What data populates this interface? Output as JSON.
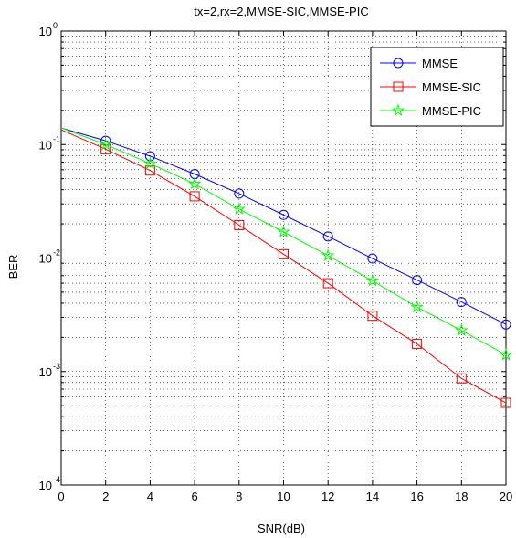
{
  "chart_data": {
    "type": "line",
    "title": "tx=2,rx=2,MMSE-SIC,MMSE-PIC",
    "xlabel": "SNR(dB)",
    "ylabel": "BER",
    "xlim": [
      0,
      20
    ],
    "ylim": [
      0.0001,
      1
    ],
    "yscale": "log",
    "grid": true,
    "legend_position": "top-right",
    "x_ticks": [
      0,
      2,
      4,
      6,
      8,
      10,
      12,
      14,
      16,
      18,
      20
    ],
    "y_ticks": [
      {
        "base": "10",
        "exp": "-4",
        "value": 0.0001
      },
      {
        "base": "10",
        "exp": "-3",
        "value": 0.001
      },
      {
        "base": "10",
        "exp": "-2",
        "value": 0.01
      },
      {
        "base": "10",
        "exp": "-1",
        "value": 0.1
      },
      {
        "base": "10",
        "exp": "0",
        "value": 1
      }
    ],
    "series": [
      {
        "name": "MMSE",
        "color": "#0000ff",
        "marker": "circle",
        "x": [
          0,
          2,
          4,
          6,
          8,
          10,
          12,
          14,
          16,
          18,
          20
        ],
        "y": [
          0.14,
          0.108,
          0.079,
          0.055,
          0.037,
          0.024,
          0.0155,
          0.0099,
          0.0064,
          0.0041,
          0.0026
        ]
      },
      {
        "name": "MMSE-SIC",
        "color": "#ff0000",
        "marker": "square",
        "x": [
          0,
          2,
          4,
          6,
          8,
          10,
          12,
          14,
          16,
          18,
          20
        ],
        "y": [
          0.135,
          0.091,
          0.059,
          0.035,
          0.0195,
          0.0108,
          0.006,
          0.0031,
          0.00175,
          0.00087,
          0.00053
        ]
      },
      {
        "name": "MMSE-PIC",
        "color": "#00ff00",
        "marker": "pentagram",
        "x": [
          0,
          2,
          4,
          6,
          8,
          10,
          12,
          14,
          16,
          18,
          20
        ],
        "y": [
          0.14,
          0.1,
          0.068,
          0.045,
          0.027,
          0.017,
          0.0105,
          0.0063,
          0.0037,
          0.0023,
          0.0014
        ]
      }
    ]
  }
}
